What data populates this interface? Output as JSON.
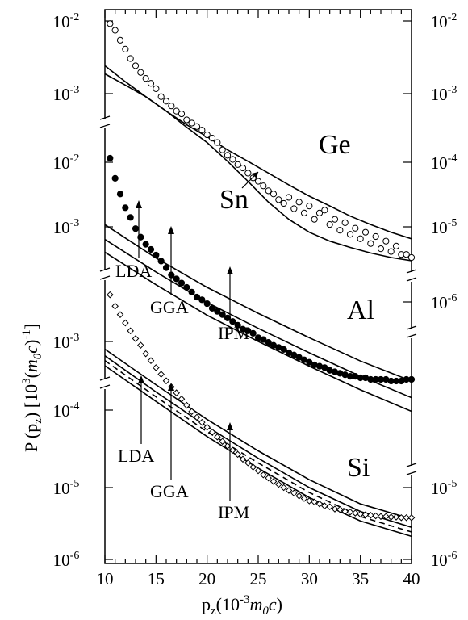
{
  "chart_data": {
    "type": "scatter",
    "y_scale": "log",
    "grid": false,
    "xlabel": "p_z (10^-3 m_0 c)",
    "ylabel": "P (p_z) [10^3 (m_0 c)^-1]",
    "x_ticks": [
      "10",
      "15",
      "20",
      "25",
      "30",
      "35",
      "40"
    ],
    "xlim": [
      10,
      40
    ],
    "panels": [
      {
        "name": "Ge",
        "left_ticks": [
          "10^-2",
          "10^-3"
        ],
        "right_ticks": [
          "10^-2",
          "10^-3"
        ],
        "ylim": [
          0.00018,
          0.012
        ],
        "annotations": [
          "Ge",
          "Sn"
        ],
        "series": [
          {
            "name": "Ge",
            "kind": "line",
            "x": [
              10,
              12,
              14,
              16,
              18,
              20,
              22,
              24,
              26,
              28,
              30,
              32,
              34,
              36,
              38,
              40
            ],
            "y": [
              0.0047,
              0.0036,
              0.0028,
              0.0022,
              0.00175,
              0.00143,
              0.00115,
              0.00095,
              0.00078,
              0.00064,
              0.00053,
              0.00045,
              0.00038,
              0.00033,
              0.00029,
              0.00026
            ]
          },
          {
            "name": "Sn",
            "kind": "line",
            "x": [
              10,
              12,
              14,
              16,
              18,
              20,
              22,
              24,
              26,
              28,
              30,
              32,
              34,
              36,
              38,
              40
            ],
            "y": [
              0.0041,
              0.0034,
              0.0028,
              0.0022,
              0.00168,
              0.0013,
              0.00095,
              0.00068,
              0.00048,
              0.00036,
              0.00029,
              0.00025,
              0.000225,
              0.000205,
              0.00019,
              0.00018
            ]
          },
          {
            "name": "Ge data",
            "kind": "markers",
            "marker": "open-circle",
            "x": [
              10.5,
              11,
              11.5,
              12,
              12.5,
              13,
              13.5,
              14,
              14.5,
              15,
              15.5,
              16,
              16.5,
              17,
              17.5,
              18,
              18.5,
              19,
              19.5,
              20,
              20.5,
              21,
              21.5,
              22,
              22.5,
              23,
              23.5,
              24,
              24.5,
              25,
              25.5,
              26,
              26.5,
              27,
              27.5,
              28,
              28.5,
              29,
              29.5,
              30,
              30.5,
              31,
              31.5,
              32,
              32.5,
              33,
              33.5,
              34,
              34.5,
              35,
              35.5,
              36,
              36.5,
              37,
              37.5,
              38,
              38.5,
              39,
              39.5,
              40
            ],
            "y": [
              0.0095,
              0.0085,
              0.0072,
              0.0062,
              0.0053,
              0.0047,
              0.0042,
              0.0038,
              0.0035,
              0.0032,
              0.0028,
              0.0026,
              0.0024,
              0.0022,
              0.0021,
              0.0019,
              0.0018,
              0.0017,
              0.0016,
              0.00148,
              0.0014,
              0.0013,
              0.00115,
              0.00105,
              0.00098,
              0.0009,
              0.00085,
              0.00078,
              0.00072,
              0.00068,
              0.00063,
              0.00058,
              0.00055,
              0.0005,
              0.00047,
              0.00052,
              0.00043,
              0.00048,
              0.0004,
              0.00045,
              0.00036,
              0.0004,
              0.00042,
              0.00033,
              0.00036,
              0.0003,
              0.00034,
              0.00028,
              0.00031,
              0.00026,
              0.00029,
              0.00024,
              0.00027,
              0.00022,
              0.00025,
              0.00021,
              0.00023,
              0.0002,
              0.0002,
              0.00019
            ]
          }
        ]
      },
      {
        "name": "Al",
        "left_ticks": [
          "10^-2",
          "10^-3"
        ],
        "right_ticks": [
          "10^-4",
          "10^-5",
          "10^-6"
        ],
        "ylim": [
          0.00045,
          0.012
        ],
        "annotations": [
          "Al",
          "LDA",
          "GGA",
          "IPM"
        ],
        "series": [
          {
            "name": "LDA",
            "kind": "line",
            "x": [
              10,
              15,
              20,
              25,
              30,
              35,
              40
            ],
            "y": [
              0.0038,
              0.0024,
              0.0016,
              0.00112,
              0.0008,
              0.00058,
              0.00044
            ]
          },
          {
            "name": "GGA",
            "kind": "line",
            "x": [
              10,
              15,
              20,
              25,
              30,
              35,
              40
            ],
            "y": [
              0.0031,
              0.00198,
              0.0013,
              0.00091,
              0.00065,
              0.00047,
              0.00035
            ]
          },
          {
            "name": "IPM",
            "kind": "line",
            "x": [
              10,
              15,
              20,
              25,
              30,
              35,
              40
            ],
            "y": [
              0.0026,
              0.00166,
              0.00109,
              0.00076,
              0.00054,
              0.00039,
              0.00029
            ]
          },
          {
            "name": "Al data",
            "kind": "markers",
            "marker": "filled-circle",
            "x": [
              10.5,
              11,
              11.5,
              12,
              12.5,
              13,
              13.5,
              14,
              14.5,
              15,
              15.5,
              16,
              16.5,
              17,
              17.5,
              18,
              18.5,
              19,
              19.5,
              20,
              20.5,
              21,
              21.5,
              22,
              22.5,
              23,
              23.5,
              24,
              24.5,
              25,
              25.5,
              26,
              26.5,
              27,
              27.5,
              28,
              28.5,
              29,
              29.5,
              30,
              30.5,
              31,
              31.5,
              32,
              32.5,
              33,
              33.5,
              34,
              34.5,
              35,
              35.5,
              36,
              36.5,
              37,
              37.5,
              38,
              38.5,
              39,
              39.5,
              40
            ],
            "y": [
              0.0095,
              0.0072,
              0.0058,
              0.0048,
              0.0042,
              0.0036,
              0.0032,
              0.0029,
              0.0027,
              0.0025,
              0.0023,
              0.0021,
              0.0019,
              0.0018,
              0.0017,
              0.0016,
              0.0015,
              0.0014,
              0.00135,
              0.00128,
              0.0012,
              0.00115,
              0.0011,
              0.00105,
              0.001,
              0.00095,
              0.0009,
              0.00088,
              0.00085,
              0.0008,
              0.00078,
              0.00075,
              0.00072,
              0.0007,
              0.00068,
              0.00065,
              0.00063,
              0.00061,
              0.00059,
              0.00057,
              0.00055,
              0.00054,
              0.00053,
              0.00051,
              0.0005,
              0.00049,
              0.00048,
              0.00047,
              0.00047,
              0.00046,
              0.00046,
              0.00045,
              0.00045,
              0.00045,
              0.00045,
              0.00044,
              0.00044,
              0.00044,
              0.00045,
              0.00045
            ]
          }
        ]
      },
      {
        "name": "Si",
        "left_ticks": [
          "10^-3",
          "10^-4",
          "10^-5",
          "10^-6"
        ],
        "right_ticks": [
          "10^-5",
          "10^-6"
        ],
        "ylim": [
          1e-06,
          0.0015
        ],
        "annotations": [
          "Si",
          "LDA",
          "GGA",
          "IPM"
        ],
        "series": [
          {
            "name": "LDA",
            "kind": "line",
            "x": [
              10,
              15,
              20,
              25,
              30,
              35,
              40
            ],
            "y": [
              0.0014,
              0.00042,
              0.00013,
              4.5e-05,
              1.7e-05,
              7.5e-06,
              4.5e-06
            ]
          },
          {
            "name": "GGA",
            "kind": "line",
            "x": [
              10,
              15,
              20,
              25,
              30,
              35,
              40
            ],
            "y": [
              0.00112,
              0.00033,
              0.000102,
              3.5e-05,
              1.3e-05,
              5.8e-06,
              3.4e-06
            ]
          },
          {
            "name": "GGA (dashed)",
            "kind": "line",
            "style": "dashed",
            "x": [
              10,
              15,
              20,
              25,
              30,
              35,
              40
            ],
            "y": [
              0.00095,
              0.00028,
              8.6e-05,
              3e-05,
              1.1e-05,
              4.9e-06,
              2.9e-06
            ]
          },
          {
            "name": "IPM",
            "kind": "line",
            "x": [
              10,
              15,
              20,
              25,
              30,
              35,
              40
            ],
            "y": [
              0.0008,
              0.00024,
              7.3e-05,
              2.5e-05,
              9.3e-06,
              4.2e-06,
              2.5e-06
            ]
          },
          {
            "name": "Si data",
            "kind": "markers",
            "marker": "open-diamond",
            "x": [
              10.5,
              11,
              11.5,
              12,
              12.5,
              13,
              13.5,
              14,
              14.5,
              15,
              15.5,
              16,
              16.5,
              17,
              17.5,
              18,
              18.5,
              19,
              19.5,
              20,
              20.5,
              21,
              21.5,
              22,
              22.5,
              23,
              23.5,
              24,
              24.5,
              25,
              25.5,
              26,
              26.5,
              27,
              27.5,
              28,
              28.5,
              29,
              29.5,
              30,
              30.5,
              31,
              31.5,
              32,
              32.5,
              33,
              33.5,
              34,
              34.5,
              35,
              35.5,
              36,
              36.5,
              37,
              37.5,
              38,
              38.5,
              39,
              39.5,
              40
            ],
            "y": [
              0.0088,
              0.006,
              0.0045,
              0.0034,
              0.0026,
              0.002,
              0.0016,
              0.0012,
              0.00095,
              0.00075,
              0.0006,
              0.00048,
              0.00039,
              0.00032,
              0.00026,
              0.00021,
              0.00017,
              0.00014,
              0.000118,
              0.0001,
              8.5e-05,
              7.2e-05,
              6.2e-05,
              5.3e-05,
              4.6e-05,
              4e-05,
              3.4e-05,
              3e-05,
              2.6e-05,
              2.3e-05,
              2e-05,
              1.8e-05,
              1.6e-05,
              1.45e-05,
              1.3e-05,
              1.18e-05,
              1.08e-05,
              9.8e-06,
              9e-06,
              8.3e-06,
              8e-06,
              7.5e-06,
              7e-06,
              6.8e-06,
              6.3e-06,
              6.2e-06,
              5.8e-06,
              5.7e-06,
              5.5e-06,
              5.3e-06,
              5.2e-06,
              5.1e-06,
              5e-06,
              4.9e-06,
              4.9e-06,
              4.8e-06,
              4.8e-06,
              4.7e-06,
              4.7e-06,
              4.7e-06
            ]
          }
        ]
      }
    ]
  }
}
